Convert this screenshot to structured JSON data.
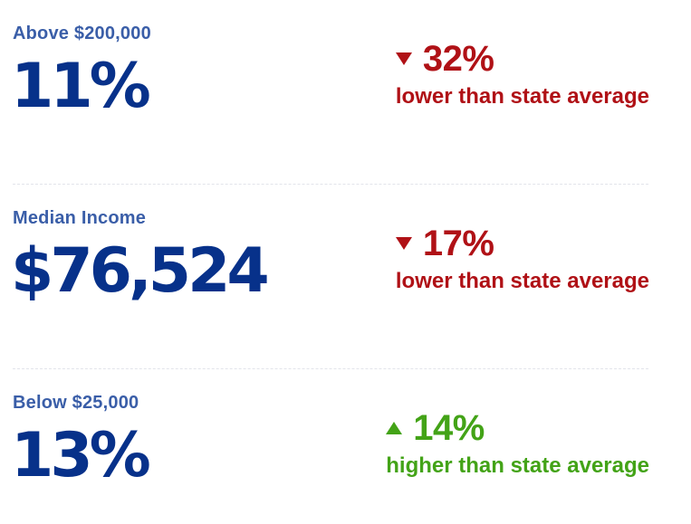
{
  "stats": [
    {
      "label": "Above $200,000",
      "value": "11%",
      "direction": "down",
      "change": "32%",
      "comparison": "lower than state average"
    },
    {
      "label": "Median Income",
      "value": "$76,524",
      "direction": "down",
      "change": "17%",
      "comparison": "lower than state average"
    },
    {
      "label": "Below $25,000",
      "value": "13%",
      "direction": "up",
      "change": "14%",
      "comparison": "higher than state average"
    }
  ],
  "colors": {
    "label": "#3a5ea8",
    "value": "#07318a",
    "lower": "#b01116",
    "higher": "#43a317"
  },
  "icons": {
    "down": "triangle-down-icon",
    "up": "triangle-up-icon"
  }
}
